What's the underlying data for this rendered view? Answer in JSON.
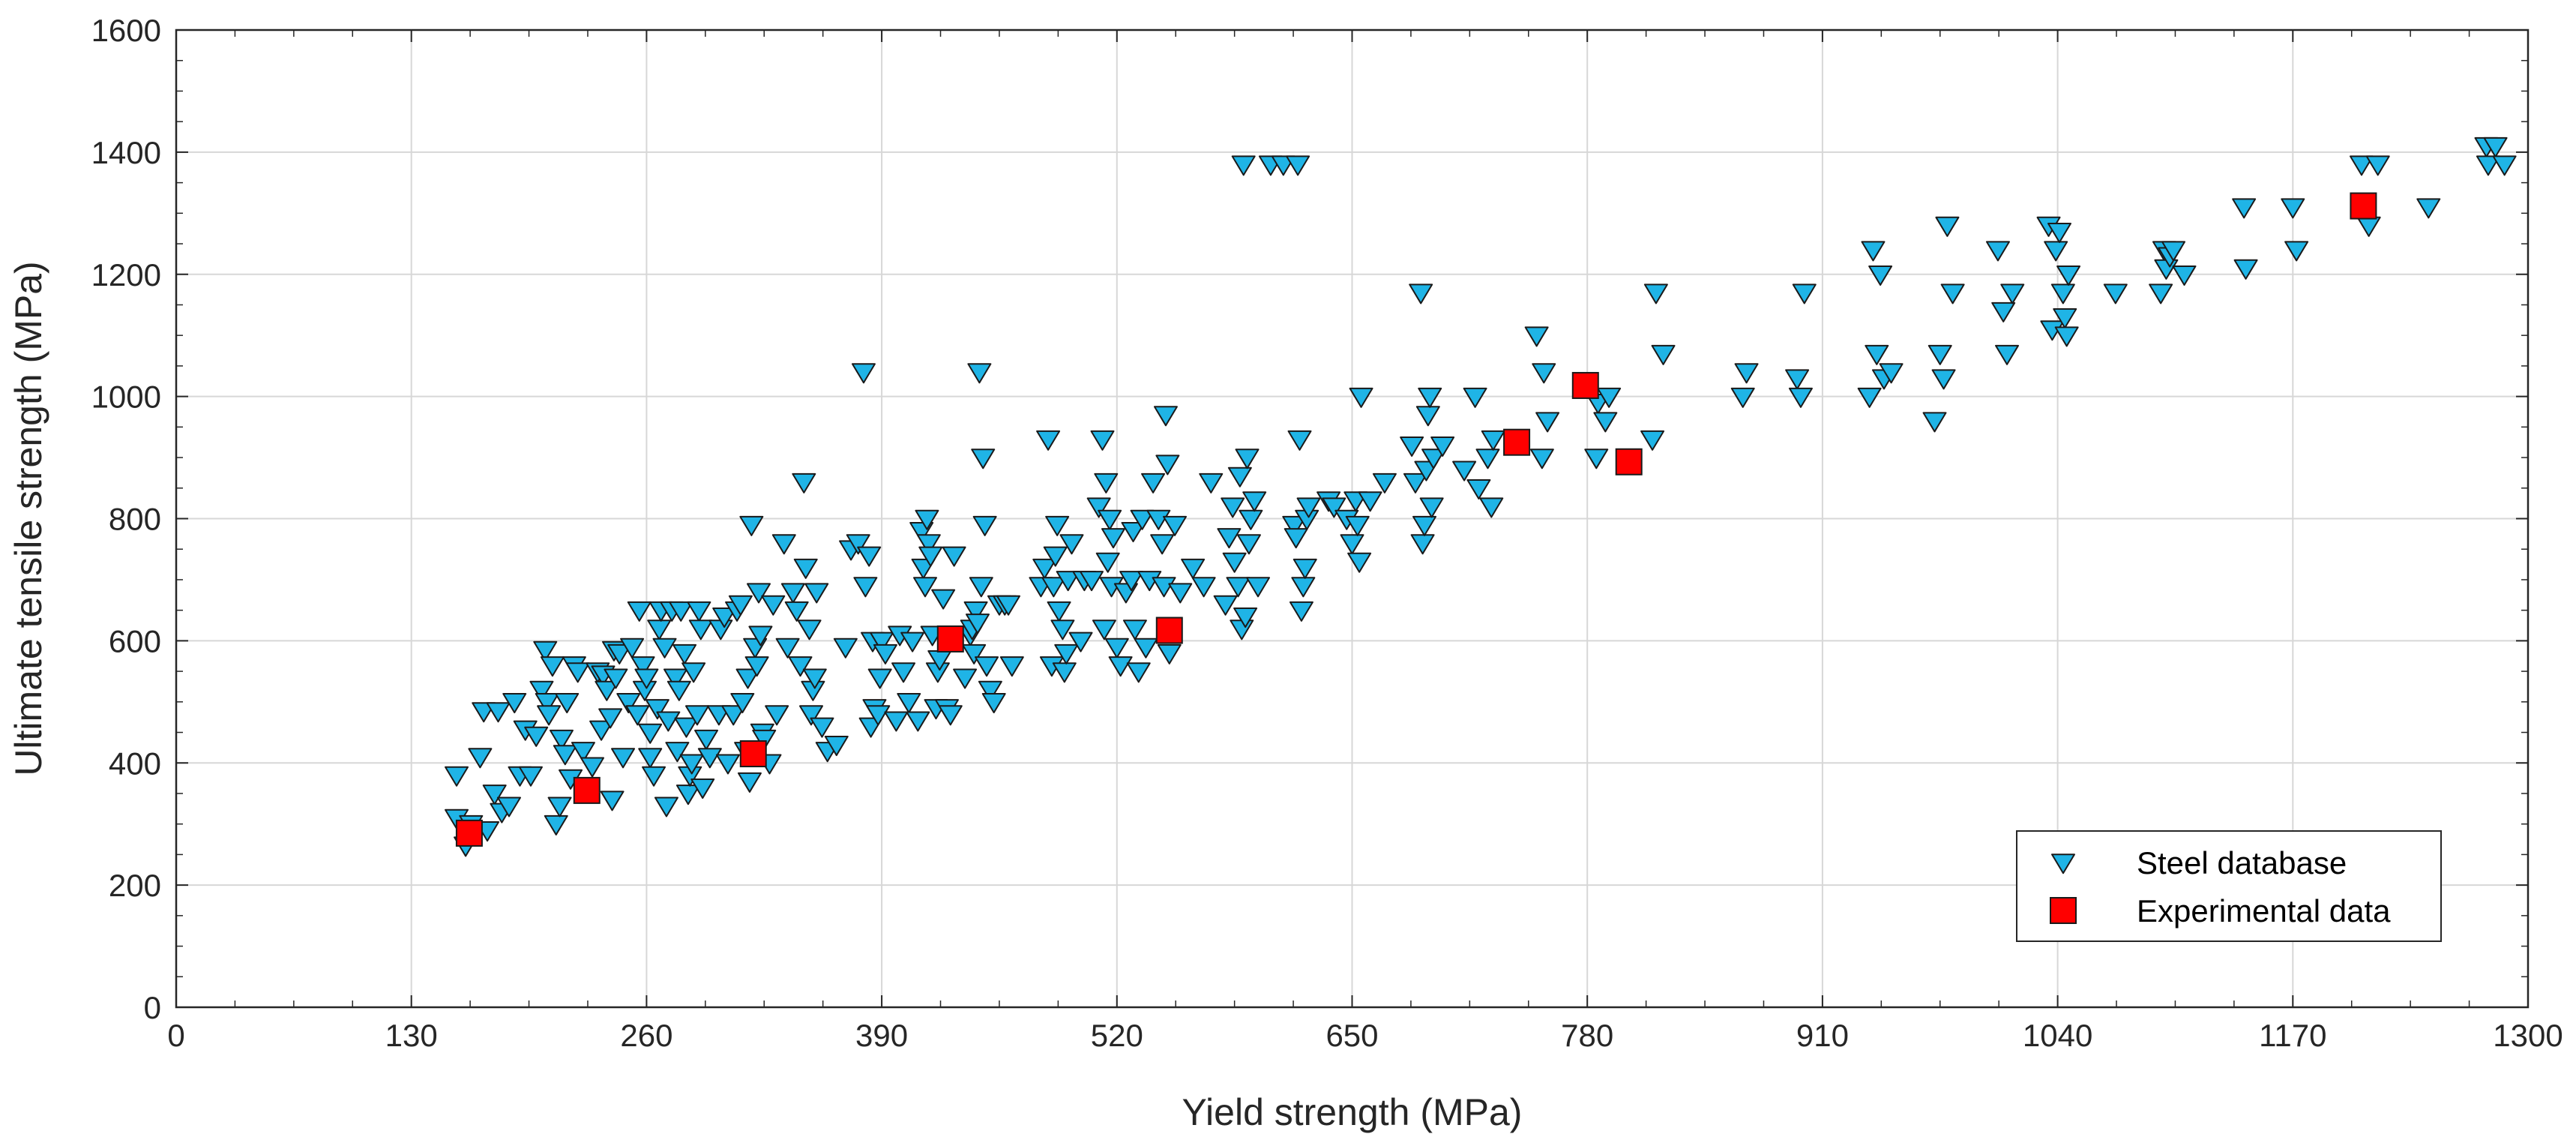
{
  "chart_data": {
    "type": "scatter",
    "title": "",
    "xlabel": "Yield strength (MPa)",
    "ylabel": "Ultimate tensile strength (MPa)",
    "xlim": [
      0,
      1300
    ],
    "ylim": [
      0,
      1600
    ],
    "xticks": [
      0,
      130,
      260,
      390,
      520,
      650,
      780,
      910,
      1040,
      1170,
      1300
    ],
    "yticks": [
      0,
      200,
      400,
      600,
      800,
      1000,
      1200,
      1400,
      1600
    ],
    "grid": true,
    "legend_position": "bottom-right",
    "colors": {
      "steel_fill": "#1fb4e6",
      "steel_edge": "#1a1a1a",
      "exp_fill": "#ff0000",
      "exp_edge": "#1a1a1a",
      "grid": "#d7d7d7",
      "axis": "#262626"
    },
    "series": [
      {
        "name": "Steel database",
        "marker": "triangle-down",
        "points": [
          [
            155,
            380
          ],
          [
            155,
            310
          ],
          [
            160,
            265
          ],
          [
            163,
            300
          ],
          [
            168,
            410
          ],
          [
            170,
            485
          ],
          [
            172,
            290
          ],
          [
            176,
            350
          ],
          [
            178,
            485
          ],
          [
            180,
            320
          ],
          [
            184,
            330
          ],
          [
            187,
            500
          ],
          [
            190,
            380
          ],
          [
            193,
            455
          ],
          [
            196,
            380
          ],
          [
            199,
            445
          ],
          [
            202,
            520
          ],
          [
            204,
            585
          ],
          [
            205,
            500
          ],
          [
            206,
            480
          ],
          [
            208,
            560
          ],
          [
            210,
            300
          ],
          [
            212,
            330
          ],
          [
            213,
            440
          ],
          [
            215,
            415
          ],
          [
            216,
            500
          ],
          [
            218,
            375
          ],
          [
            220,
            560
          ],
          [
            222,
            550
          ],
          [
            225,
            420
          ],
          [
            230,
            395
          ],
          [
            233,
            550
          ],
          [
            235,
            455
          ],
          [
            236,
            545
          ],
          [
            238,
            520
          ],
          [
            240,
            475
          ],
          [
            241,
            340
          ],
          [
            242,
            585
          ],
          [
            243,
            540
          ],
          [
            245,
            580
          ],
          [
            247,
            410
          ],
          [
            250,
            500
          ],
          [
            252,
            590
          ],
          [
            255,
            480
          ],
          [
            256,
            650
          ],
          [
            258,
            560
          ],
          [
            259,
            520
          ],
          [
            260,
            540
          ],
          [
            262,
            410
          ],
          [
            262,
            450
          ],
          [
            264,
            380
          ],
          [
            266,
            490
          ],
          [
            267,
            620
          ],
          [
            268,
            650
          ],
          [
            270,
            590
          ],
          [
            271,
            330
          ],
          [
            272,
            470
          ],
          [
            274,
            650
          ],
          [
            276,
            540
          ],
          [
            277,
            420
          ],
          [
            278,
            520
          ],
          [
            279,
            650
          ],
          [
            281,
            580
          ],
          [
            282,
            460
          ],
          [
            283,
            350
          ],
          [
            284,
            380
          ],
          [
            285,
            400
          ],
          [
            286,
            550
          ],
          [
            288,
            480
          ],
          [
            289,
            650
          ],
          [
            290,
            620
          ],
          [
            291,
            360
          ],
          [
            293,
            440
          ],
          [
            295,
            410
          ],
          [
            300,
            480
          ],
          [
            301,
            620
          ],
          [
            303,
            640
          ],
          [
            305,
            400
          ],
          [
            308,
            480
          ],
          [
            310,
            650
          ],
          [
            312,
            660
          ],
          [
            313,
            500
          ],
          [
            315,
            420
          ],
          [
            316,
            540
          ],
          [
            317,
            370
          ],
          [
            318,
            790
          ],
          [
            320,
            590
          ],
          [
            321,
            560
          ],
          [
            322,
            680
          ],
          [
            323,
            610
          ],
          [
            324,
            450
          ],
          [
            325,
            440
          ],
          [
            328,
            400
          ],
          [
            330,
            660
          ],
          [
            332,
            480
          ],
          [
            336,
            760
          ],
          [
            338,
            590
          ],
          [
            341,
            680
          ],
          [
            343,
            650
          ],
          [
            345,
            560
          ],
          [
            347,
            860
          ],
          [
            348,
            720
          ],
          [
            350,
            620
          ],
          [
            351,
            480
          ],
          [
            352,
            520
          ],
          [
            353,
            540
          ],
          [
            354,
            680
          ],
          [
            357,
            460
          ],
          [
            360,
            420
          ],
          [
            365,
            430
          ],
          [
            370,
            590
          ],
          [
            373,
            750
          ],
          [
            377,
            760
          ],
          [
            380,
            1040
          ],
          [
            381,
            690
          ],
          [
            383,
            740
          ],
          [
            384,
            460
          ],
          [
            385,
            600
          ],
          [
            386,
            490
          ],
          [
            388,
            480
          ],
          [
            389,
            540
          ],
          [
            390,
            600
          ],
          [
            392,
            580
          ],
          [
            398,
            470
          ],
          [
            400,
            610
          ],
          [
            402,
            550
          ],
          [
            405,
            500
          ],
          [
            407,
            600
          ],
          [
            410,
            470
          ],
          [
            412,
            780
          ],
          [
            413,
            720
          ],
          [
            414,
            690
          ],
          [
            415,
            800
          ],
          [
            416,
            760
          ],
          [
            417,
            740
          ],
          [
            418,
            610
          ],
          [
            420,
            490
          ],
          [
            421,
            550
          ],
          [
            422,
            570
          ],
          [
            424,
            670
          ],
          [
            426,
            490
          ],
          [
            428,
            480
          ],
          [
            430,
            740
          ],
          [
            436,
            540
          ],
          [
            439,
            610
          ],
          [
            440,
            620
          ],
          [
            441,
            580
          ],
          [
            442,
            650
          ],
          [
            443,
            630
          ],
          [
            444,
            1040
          ],
          [
            445,
            690
          ],
          [
            446,
            900
          ],
          [
            447,
            790
          ],
          [
            448,
            560
          ],
          [
            450,
            520
          ],
          [
            452,
            500
          ],
          [
            455,
            660
          ],
          [
            458,
            660
          ],
          [
            460,
            660
          ],
          [
            462,
            560
          ],
          [
            478,
            690
          ],
          [
            480,
            720
          ],
          [
            482,
            930
          ],
          [
            484,
            560
          ],
          [
            485,
            690
          ],
          [
            486,
            740
          ],
          [
            487,
            790
          ],
          [
            488,
            650
          ],
          [
            490,
            620
          ],
          [
            491,
            550
          ],
          [
            492,
            580
          ],
          [
            493,
            700
          ],
          [
            495,
            760
          ],
          [
            500,
            600
          ],
          [
            502,
            700
          ],
          [
            506,
            700
          ],
          [
            510,
            820
          ],
          [
            512,
            930
          ],
          [
            513,
            620
          ],
          [
            514,
            860
          ],
          [
            515,
            730
          ],
          [
            516,
            800
          ],
          [
            517,
            690
          ],
          [
            518,
            770
          ],
          [
            520,
            590
          ],
          [
            522,
            560
          ],
          [
            525,
            680
          ],
          [
            528,
            700
          ],
          [
            529,
            780
          ],
          [
            530,
            620
          ],
          [
            532,
            550
          ],
          [
            534,
            800
          ],
          [
            536,
            590
          ],
          [
            538,
            700
          ],
          [
            540,
            860
          ],
          [
            543,
            800
          ],
          [
            545,
            760
          ],
          [
            546,
            690
          ],
          [
            547,
            970
          ],
          [
            548,
            890
          ],
          [
            549,
            580
          ],
          [
            552,
            790
          ],
          [
            555,
            680
          ],
          [
            562,
            720
          ],
          [
            568,
            690
          ],
          [
            572,
            860
          ],
          [
            580,
            660
          ],
          [
            582,
            770
          ],
          [
            584,
            820
          ],
          [
            585,
            730
          ],
          [
            587,
            690
          ],
          [
            588,
            870
          ],
          [
            589,
            620
          ],
          [
            590,
            1380
          ],
          [
            591,
            640
          ],
          [
            592,
            900
          ],
          [
            593,
            760
          ],
          [
            594,
            800
          ],
          [
            596,
            830
          ],
          [
            598,
            690
          ],
          [
            605,
            1380
          ],
          [
            612,
            1380
          ],
          [
            618,
            790
          ],
          [
            619,
            770
          ],
          [
            620,
            1380
          ],
          [
            621,
            930
          ],
          [
            622,
            650
          ],
          [
            623,
            690
          ],
          [
            624,
            720
          ],
          [
            625,
            800
          ],
          [
            626,
            820
          ],
          [
            637,
            830
          ],
          [
            640,
            820
          ],
          [
            647,
            800
          ],
          [
            650,
            760
          ],
          [
            652,
            830
          ],
          [
            653,
            790
          ],
          [
            654,
            730
          ],
          [
            655,
            1000
          ],
          [
            660,
            830
          ],
          [
            668,
            860
          ],
          [
            683,
            920
          ],
          [
            685,
            860
          ],
          [
            688,
            1170
          ],
          [
            689,
            760
          ],
          [
            690,
            790
          ],
          [
            691,
            880
          ],
          [
            692,
            970
          ],
          [
            693,
            1000
          ],
          [
            694,
            820
          ],
          [
            695,
            900
          ],
          [
            700,
            920
          ],
          [
            712,
            880
          ],
          [
            718,
            1000
          ],
          [
            720,
            850
          ],
          [
            725,
            900
          ],
          [
            727,
            820
          ],
          [
            728,
            930
          ],
          [
            752,
            1100
          ],
          [
            755,
            900
          ],
          [
            756,
            1040
          ],
          [
            758,
            960
          ],
          [
            785,
            900
          ],
          [
            786,
            990
          ],
          [
            790,
            960
          ],
          [
            792,
            1000
          ],
          [
            816,
            930
          ],
          [
            818,
            1170
          ],
          [
            822,
            1070
          ],
          [
            866,
            1000
          ],
          [
            868,
            1040
          ],
          [
            896,
            1030
          ],
          [
            898,
            1000
          ],
          [
            900,
            1170
          ],
          [
            936,
            1000
          ],
          [
            938,
            1240
          ],
          [
            940,
            1070
          ],
          [
            942,
            1200
          ],
          [
            944,
            1030
          ],
          [
            948,
            1040
          ],
          [
            972,
            960
          ],
          [
            975,
            1070
          ],
          [
            977,
            1030
          ],
          [
            979,
            1280
          ],
          [
            982,
            1170
          ],
          [
            1007,
            1240
          ],
          [
            1010,
            1140
          ],
          [
            1012,
            1070
          ],
          [
            1015,
            1170
          ],
          [
            1035,
            1280
          ],
          [
            1037,
            1110
          ],
          [
            1039,
            1240
          ],
          [
            1041,
            1270
          ],
          [
            1043,
            1170
          ],
          [
            1044,
            1130
          ],
          [
            1045,
            1100
          ],
          [
            1046,
            1200
          ],
          [
            1072,
            1170
          ],
          [
            1097,
            1170
          ],
          [
            1099,
            1240
          ],
          [
            1100,
            1210
          ],
          [
            1102,
            1230
          ],
          [
            1104,
            1240
          ],
          [
            1110,
            1200
          ],
          [
            1143,
            1310
          ],
          [
            1144,
            1210
          ],
          [
            1170,
            1310
          ],
          [
            1172,
            1240
          ],
          [
            1208,
            1380
          ],
          [
            1212,
            1280
          ],
          [
            1217,
            1380
          ],
          [
            1245,
            1310
          ],
          [
            1277,
            1410
          ],
          [
            1278,
            1380
          ],
          [
            1282,
            1410
          ],
          [
            1287,
            1380
          ]
        ]
      },
      {
        "name": "Experimental data",
        "marker": "square",
        "points": [
          [
            162,
            285
          ],
          [
            227,
            355
          ],
          [
            319,
            415
          ],
          [
            428,
            603
          ],
          [
            549,
            617
          ],
          [
            741,
            925
          ],
          [
            779,
            1018
          ],
          [
            803,
            893
          ],
          [
            1209,
            1312
          ]
        ]
      }
    ]
  }
}
